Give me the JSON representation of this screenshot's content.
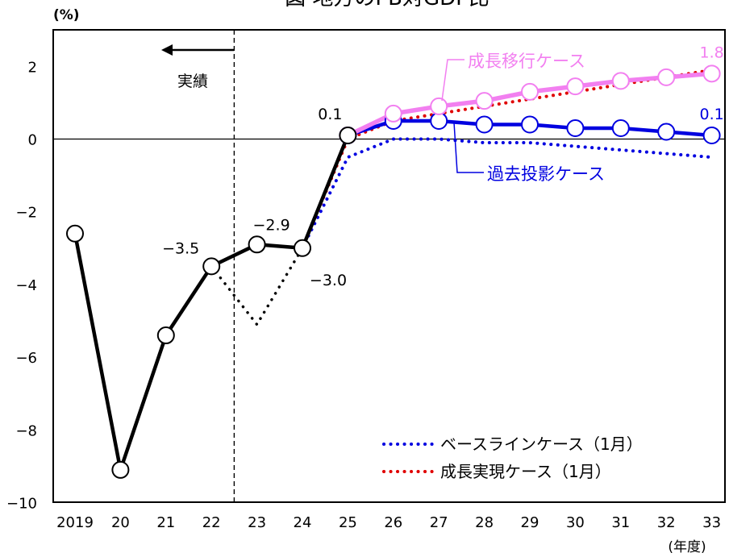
{
  "chart_data": {
    "type": "line",
    "title": "図 地方のPB対GDP比",
    "unit_label": "(%)",
    "x_unit_label": "(年度)",
    "categories": [
      "2019",
      "20",
      "21",
      "22",
      "23",
      "24",
      "25",
      "26",
      "27",
      "28",
      "29",
      "30",
      "31",
      "32",
      "33"
    ],
    "ylim": [
      -10,
      3
    ],
    "yticks": [
      2,
      0,
      -2,
      -4,
      -6,
      -8,
      -10
    ],
    "ytick_labels": [
      "2",
      "0",
      "−2",
      "−4",
      "−6",
      "−8",
      "−10"
    ],
    "grid": false,
    "legend_position": "bottom-right",
    "series": [
      {
        "name": "",
        "style": "black-solid-markers",
        "color": "#000000",
        "values": [
          -2.6,
          -9.1,
          -5.4,
          -3.5,
          -2.9,
          -3.0,
          0.1,
          null,
          null,
          null,
          null,
          null,
          null,
          null,
          null
        ]
      },
      {
        "name": "",
        "style": "black-dotted",
        "color": "#000000",
        "values": [
          null,
          null,
          null,
          -3.5,
          -5.1,
          -3.0,
          null,
          null,
          null,
          null,
          null,
          null,
          null,
          null,
          null
        ]
      },
      {
        "name": "成長移行ケース",
        "style": "pink-solid-markers",
        "color": "#f27ff0",
        "values": [
          null,
          null,
          null,
          null,
          null,
          null,
          0.1,
          0.7,
          0.9,
          1.05,
          1.3,
          1.45,
          1.6,
          1.7,
          1.8
        ]
      },
      {
        "name": "過去投影ケース",
        "style": "blue-solid-markers",
        "color": "#0000e0",
        "values": [
          null,
          null,
          null,
          null,
          null,
          null,
          0.1,
          0.5,
          0.5,
          0.4,
          0.4,
          0.3,
          0.3,
          0.2,
          0.1
        ]
      },
      {
        "name": "ベースラインケース（1月）",
        "style": "blue-dotted",
        "color": "#0000e0",
        "values": [
          null,
          null,
          null,
          null,
          null,
          -3.0,
          -0.5,
          0.0,
          0.0,
          -0.1,
          -0.1,
          -0.2,
          -0.3,
          -0.4,
          -0.5
        ]
      },
      {
        "name": "成長実現ケース（1月）",
        "style": "red-dotted",
        "color": "#e00000",
        "values": [
          null,
          null,
          null,
          null,
          null,
          -3.0,
          0.0,
          0.5,
          0.7,
          0.9,
          1.1,
          1.3,
          1.5,
          1.7,
          1.9
        ]
      }
    ],
    "data_labels": [
      {
        "text": "0.1",
        "series": "past",
        "x": "25",
        "y": 0.1
      },
      {
        "text": "−3.5",
        "x": "22",
        "y": -3.5
      },
      {
        "text": "−2.9",
        "x": "23",
        "y": -2.9
      },
      {
        "text": "−3.0",
        "x": "24",
        "y": -3.0
      },
      {
        "text": "1.8",
        "x": "33",
        "y": 1.8
      },
      {
        "text": "0.1",
        "x": "33",
        "y": 0.1
      }
    ],
    "annotations": {
      "actual_label": "実績",
      "growth_case_label": "成長移行ケース",
      "past_case_label": "過去投影ケース"
    },
    "legend": [
      {
        "text": "ベースラインケース（1月）",
        "color": "#0000e0"
      },
      {
        "text": "成長実現ケース（1月）",
        "color": "#e00000"
      }
    ]
  }
}
